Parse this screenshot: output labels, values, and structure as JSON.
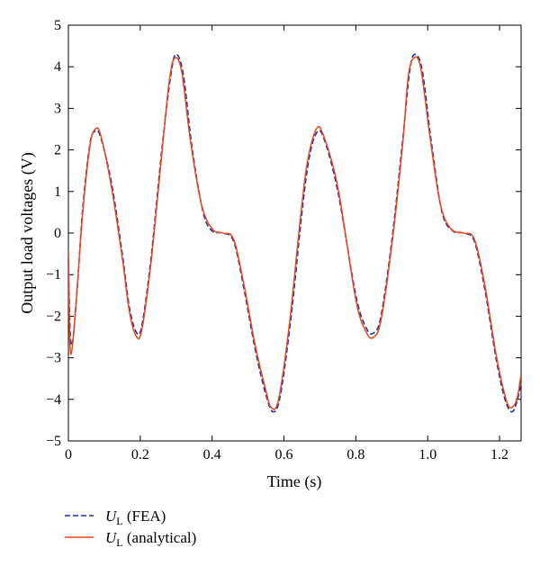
{
  "chart_data": {
    "type": "line",
    "xlabel": "Time (s)",
    "ylabel": "Output load voltages (V)",
    "xlim": [
      0,
      1.26
    ],
    "ylim": [
      -5,
      5
    ],
    "xticks": [
      0,
      0.2,
      0.4,
      0.6,
      0.8,
      1.0,
      1.2
    ],
    "xtick_labels": [
      "0",
      "0.2",
      "0.4",
      "0.6",
      "0.8",
      "1.0",
      "1.2"
    ],
    "yticks": [
      -5,
      -4,
      -3,
      -2,
      -1,
      0,
      1,
      2,
      3,
      4,
      5
    ],
    "yticks_labels": [
      "−5",
      "−4",
      "−3",
      "−2",
      "−1",
      "0",
      "1",
      "2",
      "3",
      "4",
      "5"
    ],
    "grid": false,
    "legend_position": "bottom-left, below plot",
    "series": [
      {
        "legend_symbol": "U",
        "legend_subscript": "L",
        "legend_suffix": " (FEA)",
        "color": "#1f2fa8",
        "style": "dashed",
        "points": [
          [
            0.0,
            -0.6
          ],
          [
            0.005,
            -2.4
          ],
          [
            0.012,
            -2.6
          ],
          [
            0.025,
            -1.3
          ],
          [
            0.04,
            0.6
          ],
          [
            0.06,
            2.15
          ],
          [
            0.075,
            2.45
          ],
          [
            0.09,
            2.3
          ],
          [
            0.12,
            1.2
          ],
          [
            0.15,
            -0.5
          ],
          [
            0.17,
            -1.8
          ],
          [
            0.19,
            -2.4
          ],
          [
            0.205,
            -2.2
          ],
          [
            0.23,
            -0.6
          ],
          [
            0.26,
            2.0
          ],
          [
            0.285,
            3.8
          ],
          [
            0.3,
            4.3
          ],
          [
            0.32,
            3.8
          ],
          [
            0.345,
            2.0
          ],
          [
            0.375,
            0.5
          ],
          [
            0.4,
            0.05
          ],
          [
            0.43,
            0.0
          ],
          [
            0.46,
            -0.2
          ],
          [
            0.49,
            -1.4
          ],
          [
            0.52,
            -2.8
          ],
          [
            0.55,
            -3.9
          ],
          [
            0.57,
            -4.3
          ],
          [
            0.59,
            -3.9
          ],
          [
            0.62,
            -2.0
          ],
          [
            0.65,
            0.5
          ],
          [
            0.67,
            1.8
          ],
          [
            0.69,
            2.4
          ],
          [
            0.71,
            2.3
          ],
          [
            0.75,
            1.0
          ],
          [
            0.8,
            -1.5
          ],
          [
            0.83,
            -2.3
          ],
          [
            0.85,
            -2.4
          ],
          [
            0.87,
            -2.0
          ],
          [
            0.9,
            -0.2
          ],
          [
            0.93,
            2.2
          ],
          [
            0.95,
            3.9
          ],
          [
            0.965,
            4.3
          ],
          [
            0.985,
            3.9
          ],
          [
            1.01,
            2.2
          ],
          [
            1.04,
            0.5
          ],
          [
            1.07,
            0.05
          ],
          [
            1.1,
            0.0
          ],
          [
            1.13,
            -0.2
          ],
          [
            1.16,
            -1.4
          ],
          [
            1.19,
            -3.0
          ],
          [
            1.215,
            -4.0
          ],
          [
            1.235,
            -4.3
          ],
          [
            1.25,
            -4.0
          ],
          [
            1.26,
            -3.6
          ]
        ]
      },
      {
        "legend_symbol": "U",
        "legend_subscript": "L",
        "legend_suffix": " (analytical)",
        "color": "#e8481a",
        "style": "solid",
        "points": [
          [
            0.0,
            -0.4
          ],
          [
            0.004,
            -2.6
          ],
          [
            0.01,
            -2.8
          ],
          [
            0.022,
            -1.6
          ],
          [
            0.04,
            0.5
          ],
          [
            0.06,
            2.1
          ],
          [
            0.075,
            2.5
          ],
          [
            0.09,
            2.35
          ],
          [
            0.12,
            1.1
          ],
          [
            0.15,
            -0.6
          ],
          [
            0.17,
            -1.9
          ],
          [
            0.19,
            -2.5
          ],
          [
            0.205,
            -2.3
          ],
          [
            0.23,
            -0.7
          ],
          [
            0.26,
            1.9
          ],
          [
            0.28,
            3.6
          ],
          [
            0.295,
            4.2
          ],
          [
            0.315,
            3.9
          ],
          [
            0.34,
            2.2
          ],
          [
            0.37,
            0.7
          ],
          [
            0.4,
            0.1
          ],
          [
            0.43,
            0.0
          ],
          [
            0.46,
            -0.15
          ],
          [
            0.49,
            -1.3
          ],
          [
            0.52,
            -2.7
          ],
          [
            0.55,
            -3.8
          ],
          [
            0.565,
            -4.2
          ],
          [
            0.585,
            -4.0
          ],
          [
            0.615,
            -2.2
          ],
          [
            0.645,
            0.3
          ],
          [
            0.665,
            1.7
          ],
          [
            0.69,
            2.5
          ],
          [
            0.71,
            2.35
          ],
          [
            0.75,
            1.1
          ],
          [
            0.8,
            -1.6
          ],
          [
            0.83,
            -2.4
          ],
          [
            0.85,
            -2.5
          ],
          [
            0.87,
            -2.1
          ],
          [
            0.9,
            -0.3
          ],
          [
            0.93,
            2.1
          ],
          [
            0.945,
            3.7
          ],
          [
            0.96,
            4.2
          ],
          [
            0.98,
            4.0
          ],
          [
            1.005,
            2.4
          ],
          [
            1.035,
            0.7
          ],
          [
            1.065,
            0.1
          ],
          [
            1.1,
            0.0
          ],
          [
            1.13,
            -0.15
          ],
          [
            1.16,
            -1.3
          ],
          [
            1.19,
            -2.9
          ],
          [
            1.215,
            -3.9
          ],
          [
            1.23,
            -4.2
          ],
          [
            1.248,
            -4.0
          ],
          [
            1.26,
            -3.4
          ]
        ]
      }
    ]
  }
}
